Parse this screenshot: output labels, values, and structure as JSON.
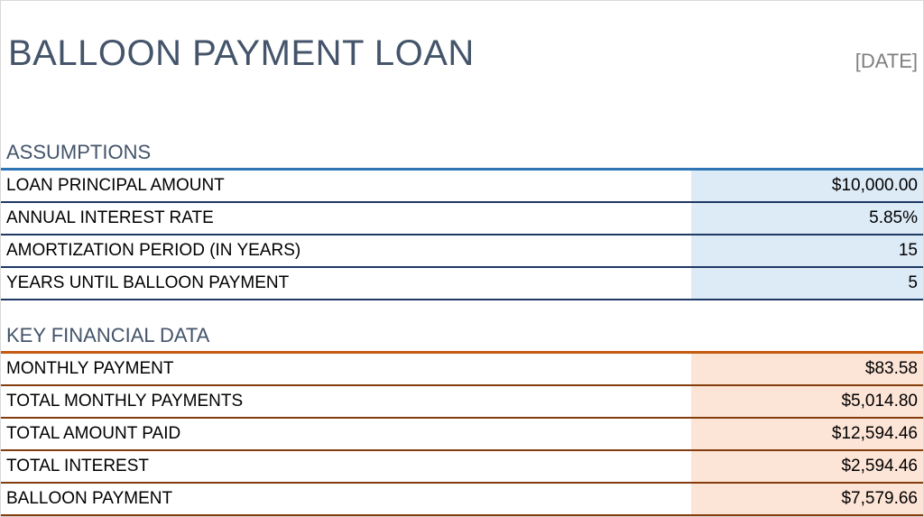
{
  "header": {
    "title": "BALLOON PAYMENT LOAN",
    "date": "[DATE]"
  },
  "sections": [
    {
      "title": "ASSUMPTIONS",
      "rows": [
        [
          "LOAN PRINCIPAL AMOUNT",
          "$10,000.00"
        ],
        [
          "ANNUAL INTEREST RATE",
          "5.85%"
        ],
        [
          "AMORTIZATION PERIOD (IN YEARS)",
          "15"
        ],
        [
          "YEARS UNTIL BALLOON PAYMENT",
          "5"
        ]
      ]
    },
    {
      "title": "KEY FINANCIAL DATA",
      "rows": [
        [
          "MONTHLY PAYMENT",
          "$83.58"
        ],
        [
          "TOTAL MONTHLY PAYMENTS",
          "$5,014.80"
        ],
        [
          "TOTAL AMOUNT PAID",
          "$12,594.46"
        ],
        [
          "TOTAL INTEREST",
          "$2,594.46"
        ],
        [
          "BALLOON PAYMENT",
          "$7,579.66"
        ]
      ]
    }
  ]
}
